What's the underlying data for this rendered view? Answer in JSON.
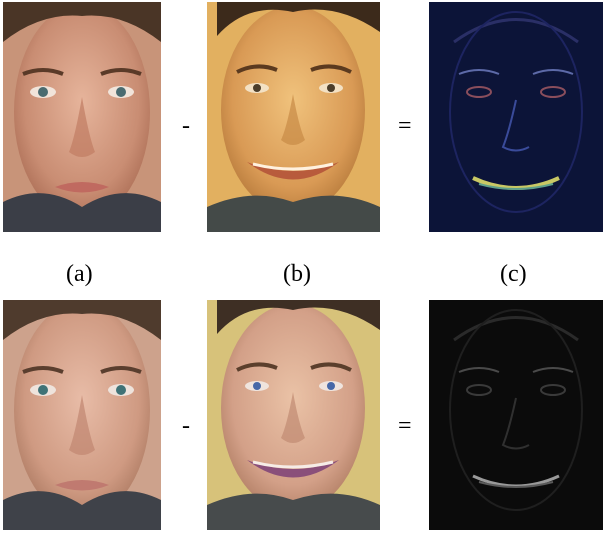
{
  "captions": {
    "a": "(a)",
    "b": "(b)",
    "c": "(c)"
  },
  "operators": {
    "minus": "-",
    "equals": "="
  },
  "colors": {
    "neutral_skin": "#d9a58c",
    "smile_skin_row1": "#e7b06a",
    "smile_skin_row2": "#dba588",
    "diff_row1_bg": "#0c1438",
    "diff_row2_bg": "#0b0b0b",
    "hair": "#3a2a1e",
    "sweater": "#3d3f46"
  }
}
